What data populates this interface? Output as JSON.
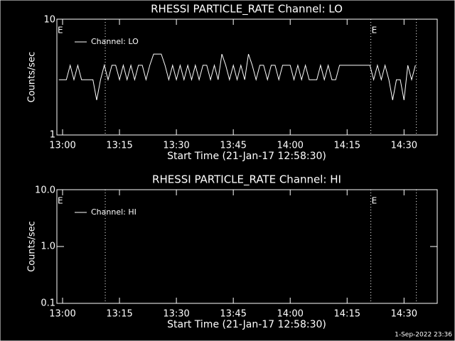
{
  "footer": "1-Sep-2022 23:36",
  "chart_data": [
    {
      "type": "line",
      "title": "RHESSI PARTICLE_RATE Channel: LO",
      "xlabel": "Start Time (21-Jan-17 12:58:30)",
      "ylabel": "Counts/sec",
      "log_y": true,
      "xlim": [
        "12:58:30",
        "14:38:45"
      ],
      "ylim": [
        1,
        10
      ],
      "yticks": [
        1,
        10
      ],
      "xticks": [
        "13:00",
        "13:15",
        "13:30",
        "13:45",
        "14:00",
        "14:15",
        "14:30"
      ],
      "vlines": [
        "13:11:15",
        "14:21:15",
        "14:33:15"
      ],
      "annotations": [
        {
          "text": "E",
          "x": "12:58:30"
        },
        {
          "text": "E",
          "x": "14:21:15"
        }
      ],
      "legend": "upper left",
      "x": [
        "12:59",
        "13:00",
        "13:01",
        "13:02",
        "13:03",
        "13:04",
        "13:05",
        "13:06",
        "13:07",
        "13:08",
        "13:09",
        "13:10",
        "13:11",
        "13:12",
        "13:13",
        "13:14",
        "13:15",
        "13:16",
        "13:17",
        "13:18",
        "13:19",
        "13:20",
        "13:21",
        "13:22",
        "13:23",
        "13:24",
        "13:25",
        "13:26",
        "13:27",
        "13:28",
        "13:29",
        "13:30",
        "13:31",
        "13:32",
        "13:33",
        "13:34",
        "13:35",
        "13:36",
        "13:37",
        "13:38",
        "13:39",
        "13:40",
        "13:41",
        "13:42",
        "13:43",
        "13:44",
        "13:45",
        "13:46",
        "13:47",
        "13:48",
        "13:49",
        "13:50",
        "13:51",
        "13:52",
        "13:53",
        "13:54",
        "13:55",
        "13:56",
        "13:57",
        "13:58",
        "13:59",
        "14:00",
        "14:01",
        "14:02",
        "14:03",
        "14:04",
        "14:05",
        "14:06",
        "14:07",
        "14:08",
        "14:09",
        "14:10",
        "14:11",
        "14:12",
        "14:13",
        "14:14",
        "14:15",
        "14:16",
        "14:17",
        "14:18",
        "14:19",
        "14:20",
        "14:21",
        "14:22",
        "14:23",
        "14:24",
        "14:25",
        "14:26",
        "14:27",
        "14:28",
        "14:29",
        "14:30",
        "14:31",
        "14:32",
        "14:33"
      ],
      "series": [
        {
          "name": "Channel: LO",
          "color": "#ffffff",
          "values": [
            3,
            3,
            3,
            4,
            3,
            4,
            3,
            3,
            3,
            3,
            2,
            3,
            4,
            3,
            4,
            4,
            3,
            4,
            3,
            4,
            3,
            4,
            4,
            3,
            4,
            5,
            5,
            5,
            4,
            3,
            4,
            3,
            4,
            3,
            4,
            3,
            4,
            3,
            4,
            4,
            3,
            4,
            3,
            5,
            4,
            3,
            4,
            3,
            4,
            3,
            5,
            4,
            3,
            4,
            4,
            3,
            4,
            4,
            3,
            4,
            4,
            4,
            3,
            4,
            3,
            4,
            3,
            3,
            3,
            4,
            3,
            4,
            3,
            3,
            4,
            4,
            4,
            4,
            4,
            4,
            4,
            4,
            4,
            3,
            4,
            3,
            4,
            3,
            2,
            3,
            3,
            2,
            4,
            3,
            4
          ]
        }
      ]
    },
    {
      "type": "line",
      "title": "RHESSI PARTICLE_RATE Channel: HI",
      "xlabel": "Start Time (21-Jan-17 12:58:30)",
      "ylabel": "Counts/sec",
      "log_y": true,
      "xlim": [
        "12:58:30",
        "14:38:45"
      ],
      "ylim": [
        0.1,
        10
      ],
      "yticks": [
        {
          "value": 0.1,
          "label": "0.1"
        },
        {
          "value": 1,
          "label": "1.0"
        },
        {
          "value": 10,
          "label": "10.0"
        }
      ],
      "xticks": [
        "13:00",
        "13:15",
        "13:30",
        "13:45",
        "14:00",
        "14:15",
        "14:30"
      ],
      "vlines": [
        "13:11:15",
        "14:21:15",
        "14:33:15"
      ],
      "annotations": [
        {
          "text": "E",
          "x": "12:58:30"
        },
        {
          "text": "E",
          "x": "14:21:15"
        }
      ],
      "legend": "upper left",
      "x": [],
      "series": [
        {
          "name": "Channel: HI",
          "color": "#ffffff",
          "values": []
        }
      ]
    }
  ]
}
